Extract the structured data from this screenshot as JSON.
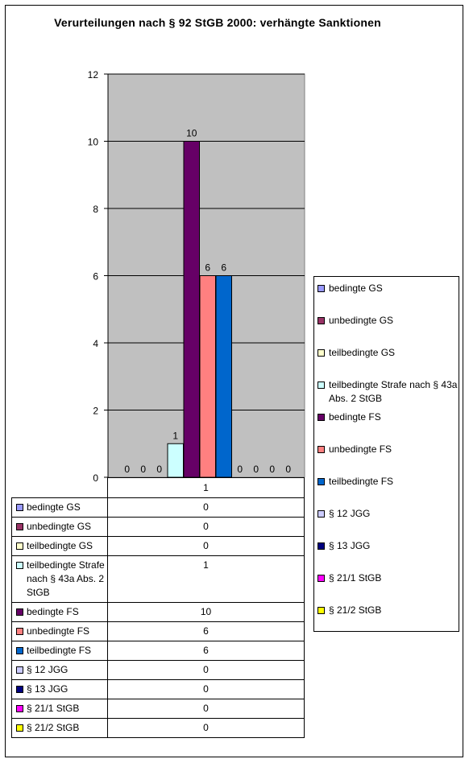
{
  "chart_data": {
    "type": "bar",
    "title": "Verurteilungen nach § 92 StGB 2000: verhängte Sanktionen",
    "categories": [
      "1"
    ],
    "ylim": [
      0,
      12
    ],
    "yticks": [
      "0",
      "2",
      "4",
      "6",
      "8",
      "10",
      "12"
    ],
    "grid": true,
    "legend_position": "right",
    "series": [
      {
        "name": "bedingte GS",
        "values": [
          0
        ],
        "color": "#9999ff"
      },
      {
        "name": "unbedingte GS",
        "values": [
          0
        ],
        "color": "#993366"
      },
      {
        "name": "teilbedingte GS",
        "values": [
          0
        ],
        "color": "#ffffcc"
      },
      {
        "name": "teilbedingte Strafe nach § 43a Abs. 2 StGB",
        "values": [
          1
        ],
        "color": "#ccffff"
      },
      {
        "name": "bedingte FS",
        "values": [
          10
        ],
        "color": "#660066"
      },
      {
        "name": "unbedingte FS",
        "values": [
          6
        ],
        "color": "#ff8080"
      },
      {
        "name": "teilbedingte FS",
        "values": [
          6
        ],
        "color": "#0066cc"
      },
      {
        "name": "§ 12 JGG",
        "values": [
          0
        ],
        "color": "#ccccff"
      },
      {
        "name": "§ 13 JGG",
        "values": [
          0
        ],
        "color": "#000080"
      },
      {
        "name": "§ 21/1 StGB",
        "values": [
          0
        ],
        "color": "#ff00ff"
      },
      {
        "name": "§ 21/2 StGB",
        "values": [
          0
        ],
        "color": "#ffff00"
      }
    ]
  },
  "plot_background": "#c0c0c0"
}
